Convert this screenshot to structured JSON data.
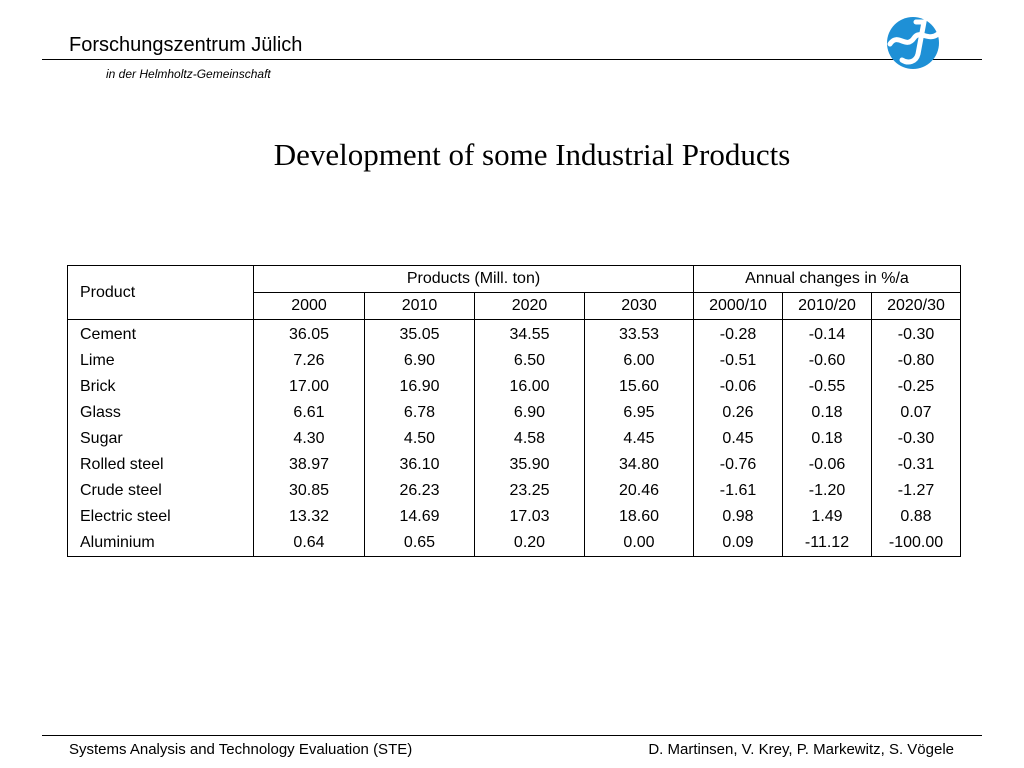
{
  "header": {
    "org": "Forschungszentrum Jülich",
    "subtitle": "in der Helmholtz-Gemeinschaft",
    "logo_icon": "fzj-logo",
    "logo_color": "#1e90d6"
  },
  "slide": {
    "title": "Development of some Industrial Products"
  },
  "table": {
    "product_header": "Product",
    "group_production": "Products (Mill. ton)",
    "group_changes": "Annual changes in %/a",
    "years": [
      "2000",
      "2010",
      "2020",
      "2030"
    ],
    "periods": [
      "2000/10",
      "2010/20",
      "2020/30"
    ],
    "rows": [
      {
        "name": "Cement",
        "values": [
          "36.05",
          "35.05",
          "34.55",
          "33.53"
        ],
        "changes": [
          "-0.28",
          "-0.14",
          "-0.30"
        ]
      },
      {
        "name": "Lime",
        "values": [
          "7.26",
          "6.90",
          "6.50",
          "6.00"
        ],
        "changes": [
          "-0.51",
          "-0.60",
          "-0.80"
        ]
      },
      {
        "name": "Brick",
        "values": [
          "17.00",
          "16.90",
          "16.00",
          "15.60"
        ],
        "changes": [
          "-0.06",
          "-0.55",
          "-0.25"
        ]
      },
      {
        "name": "Glass",
        "values": [
          "6.61",
          "6.78",
          "6.90",
          "6.95"
        ],
        "changes": [
          "0.26",
          "0.18",
          "0.07"
        ]
      },
      {
        "name": "Sugar",
        "values": [
          "4.30",
          "4.50",
          "4.58",
          "4.45"
        ],
        "changes": [
          "0.45",
          "0.18",
          "-0.30"
        ]
      },
      {
        "name": "Rolled steel",
        "values": [
          "38.97",
          "36.10",
          "35.90",
          "34.80"
        ],
        "changes": [
          "-0.76",
          "-0.06",
          "-0.31"
        ]
      },
      {
        "name": "Crude steel",
        "values": [
          "30.85",
          "26.23",
          "23.25",
          "20.46"
        ],
        "changes": [
          "-1.61",
          "-1.20",
          "-1.27"
        ]
      },
      {
        "name": "Electric steel",
        "values": [
          "13.32",
          "14.69",
          "17.03",
          "18.60"
        ],
        "changes": [
          "0.98",
          "1.49",
          "0.88"
        ]
      },
      {
        "name": "Aluminium",
        "values": [
          "0.64",
          "0.65",
          "0.20",
          "0.00"
        ],
        "changes": [
          "0.09",
          "-11.12",
          "-100.00"
        ]
      }
    ]
  },
  "footer": {
    "left": "Systems Analysis and Technology Evaluation (STE)",
    "right": "D. Martinsen, V. Krey, P. Markewitz, S. Vögele"
  }
}
